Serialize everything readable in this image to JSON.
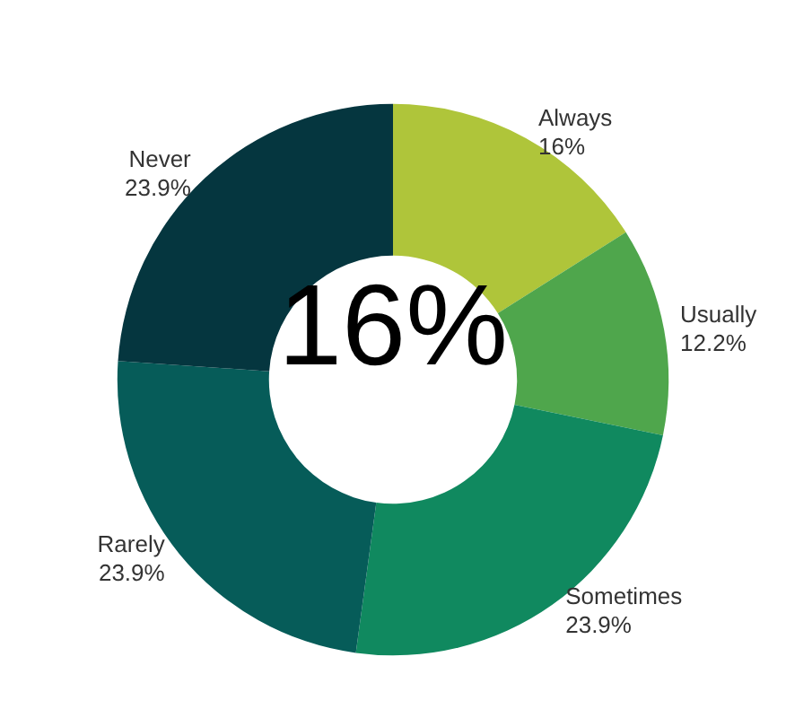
{
  "chart_data": {
    "type": "donut",
    "categories": [
      "Always",
      "Usually",
      "Sometimes",
      "Rarely",
      "Never"
    ],
    "values": [
      16,
      12.2,
      23.9,
      23.9,
      23.9
    ],
    "value_labels": [
      "16%",
      "12.2%",
      "23.9%",
      "23.9%",
      "23.9%"
    ],
    "colors": [
      "#afc53a",
      "#4fa64c",
      "#10895f",
      "#065c59",
      "#05363f"
    ],
    "annotations": [
      "16%"
    ]
  }
}
